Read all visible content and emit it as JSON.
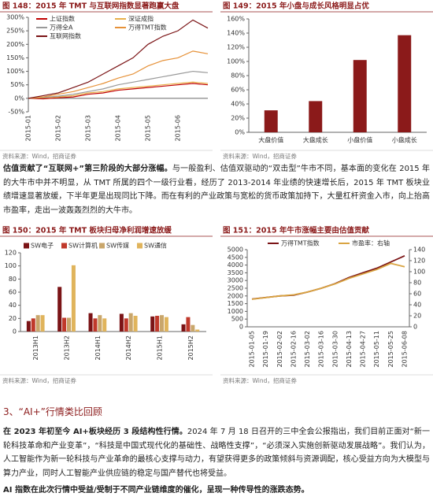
{
  "chart_data": [
    {
      "type": "line",
      "title": "图 148：2015 年 TMT 与互联网指数显著跑赢大盘",
      "source": "资料来源：Wind，招商证券",
      "categories": [
        "2015-01",
        null,
        "2015-02",
        null,
        "2015-03",
        null,
        "2015-04",
        null,
        "2015-05",
        null,
        "2015-06",
        null,
        null
      ],
      "ylim": [
        -50,
        300
      ],
      "yticks": [
        {
          "value": -50,
          "label": "-50%"
        },
        {
          "value": 0,
          "label": "0%"
        },
        {
          "value": 50,
          "label": "50%"
        },
        {
          "value": 100,
          "label": "100%"
        },
        {
          "value": 150,
          "label": "150%"
        },
        {
          "value": 200,
          "label": "200%"
        },
        {
          "value": 250,
          "label": "250%"
        },
        {
          "value": 300,
          "label": "300%"
        }
      ],
      "series": [
        {
          "name": "上证指数",
          "color": "#c00000",
          "values": [
            0,
            -2,
            2,
            5,
            15,
            20,
            30,
            35,
            40,
            45,
            50,
            55,
            50
          ]
        },
        {
          "name": "深证成指",
          "color": "#e8b04a",
          "values": [
            0,
            2,
            5,
            10,
            20,
            25,
            35,
            40,
            45,
            50,
            55,
            60,
            55
          ]
        },
        {
          "name": "万得全A",
          "color": "#999999",
          "values": [
            0,
            3,
            8,
            15,
            25,
            35,
            50,
            60,
            70,
            80,
            90,
            100,
            95
          ]
        },
        {
          "name": "万得TMT指数",
          "color": "#e69138",
          "values": [
            0,
            5,
            15,
            25,
            40,
            55,
            75,
            90,
            120,
            140,
            150,
            175,
            165
          ]
        },
        {
          "name": "互联网指数",
          "color": "#7b1416",
          "values": [
            0,
            10,
            20,
            40,
            60,
            90,
            120,
            150,
            200,
            230,
            250,
            290,
            260
          ]
        }
      ]
    },
    {
      "type": "bar",
      "title": "图 149：2015 年小盘与成长风格明显占优",
      "source": "资料来源：Wind，招商证券",
      "categories": [
        "大盘价值",
        "大盘成长",
        "小盘价值",
        "小盘成长"
      ],
      "values": [
        31,
        44,
        102,
        137
      ],
      "color": "#8b1a1a",
      "ylim": [
        0,
        160
      ],
      "yticks": [
        {
          "value": 0,
          "label": "0%"
        },
        {
          "value": 20,
          "label": "20%"
        },
        {
          "value": 40,
          "label": "40%"
        },
        {
          "value": 60,
          "label": "60%"
        },
        {
          "value": 80,
          "label": "80%"
        },
        {
          "value": 100,
          "label": "100%"
        },
        {
          "value": 120,
          "label": "120%"
        },
        {
          "value": 140,
          "label": "140%"
        },
        {
          "value": 160,
          "label": "160%"
        }
      ]
    },
    {
      "type": "grouped-bar",
      "title": "图 150：2015 年 TMT 板块归母净利润增速放缓",
      "source": "资料来源：Wind，招商证券",
      "categories": [
        "2013H1",
        "2013H2",
        "2014H1",
        "2014H2",
        "2015H1",
        "2015H2"
      ],
      "ylim": [
        0,
        120
      ],
      "yticks": [
        0,
        20,
        40,
        60,
        80,
        100,
        120
      ],
      "series": [
        {
          "name": "SW电子",
          "color": "#7b1416",
          "values": [
            16,
            68,
            28,
            27,
            23,
            11
          ]
        },
        {
          "name": "SW计算机",
          "color": "#c0392b",
          "values": [
            20,
            21,
            20,
            20,
            24,
            22
          ]
        },
        {
          "name": "SW传媒",
          "color": "#c9a66b",
          "values": [
            25,
            21,
            25,
            28,
            25,
            10
          ]
        },
        {
          "name": "SW通信",
          "color": "#e0b45c",
          "values": [
            25,
            101,
            20,
            24,
            22,
            3
          ]
        }
      ]
    },
    {
      "type": "dual-line",
      "title": "图 151：2015 年牛市涨幅主要由估值贡献",
      "source": "资料来源：Wind，招商证券",
      "categories": [
        "2015-01-05",
        "2015-01-19",
        "2015-02-02",
        "2015-02-16",
        "2015-03-02",
        "2015-03-16",
        "2015-03-30",
        "2015-04-13",
        "2015-04-27",
        "2015-05-11",
        "2015-05-25",
        "2015-06-08"
      ],
      "ylim": [
        0,
        5000
      ],
      "yticks": [
        0,
        500,
        1000,
        1500,
        2000,
        2500,
        3000,
        3500,
        4000,
        4500,
        5000
      ],
      "y2lim": [
        0,
        140
      ],
      "y2ticks": [
        0,
        20,
        40,
        60,
        80,
        100,
        120,
        140
      ],
      "series": [
        {
          "name": "万得TMT指数",
          "color": "#7b1416",
          "values": [
            1800,
            1900,
            2000,
            2050,
            2250,
            2500,
            2800,
            3200,
            3500,
            3800,
            4200,
            4600
          ]
        },
        {
          "name": "市盈率：右轴",
          "color": "#d9a441",
          "axis": "y2",
          "values": [
            50,
            53,
            56,
            58,
            63,
            70,
            78,
            88,
            96,
            104,
            115,
            109
          ]
        }
      ]
    }
  ],
  "paragraphs": [
    {
      "lead": "估值贡献了“互联网+”第三阶段的大部分涨幅。",
      "body": "与一般盈利、估值双驱动的“双击型”牛市不同，基本面的变化在 2015 年的大牛市中并不明显，从 TMT 所属的四个一级行业看，经历了 2013-2014 年业绩的快速增长后，2015 年 TMT 板块业绩增速显著放缓，下半年更是出现同比下降。而在有利的产业政策与宽松的货币政策加持下，大量杠杆资金入市，向上抬高市盈率，走出一波轰轰烈烈的大牛市。"
    },
    {
      "lead": "在 2023 年初至今 AI+板块经历 3 段结构性行情。",
      "body": "2024 年 7 月 18 日召开的三中全会公报指出，我们目前正面对“新一轮科技革命和产业变革”，“科技是中国式现代化的基础性、战略性支撑”，“必须深入实施创新驱动发展战略”。我们认为，人工智能作为新一轮科技与产业革命的最核心支撑与动力，有望获得更多的政策倾斜与资源调配，核心受益方向为大模型与算力产业，同时人工智能产业供应链的稳定与国产替代也将受益。"
    },
    {
      "lead": "AI 指数在此次行情中受益/受制于不同产业链维度的催化，呈现一种传导性的涨跌态势。"
    }
  ],
  "section": "3、“AI+”行情类比回顾"
}
